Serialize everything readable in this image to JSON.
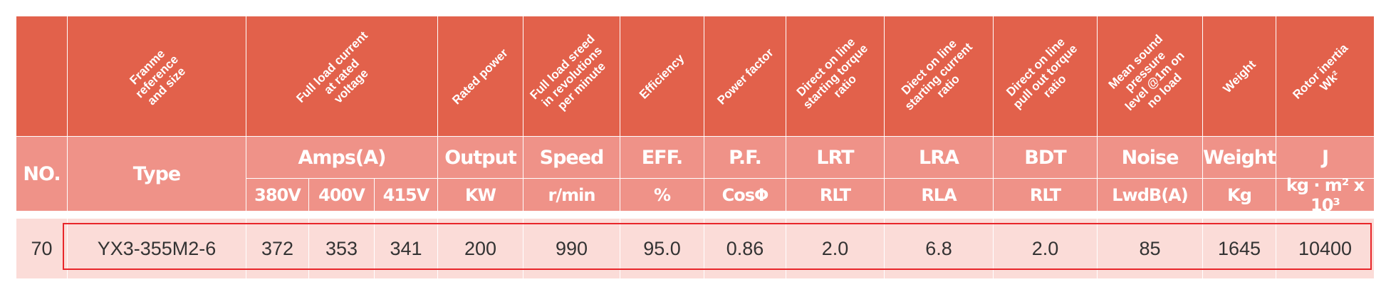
{
  "table": {
    "top_headers": [
      [
        "Franme",
        "reference",
        "and size"
      ],
      [
        "Full load current",
        "at rated",
        "voltage"
      ],
      [
        "Rated power"
      ],
      [
        "Full load sreed",
        "in revolutions",
        "per minute"
      ],
      [
        "Efficiency"
      ],
      [
        "Power factor"
      ],
      [
        "Direct on line",
        "starting torque",
        "ratio"
      ],
      [
        "Diect on line",
        "starting current",
        "ratio"
      ],
      [
        "Direct on line",
        "pull out torque",
        "ratio"
      ],
      [
        "Mean sound",
        "pressure",
        "level @1m on",
        "no load"
      ],
      [
        "Weight"
      ],
      [
        "Rotor inertia",
        "Wk²"
      ]
    ],
    "labels": [
      "NO.",
      "Type",
      "Amps(A)",
      "Output",
      "Speed",
      "EFF.",
      "P.F.",
      "LRT",
      "LRA",
      "BDT",
      "Noise",
      "Weight",
      "J"
    ],
    "units": [
      "380V",
      "400V",
      "415V",
      "KW",
      "r/min",
      "%",
      "CosΦ",
      "RLT",
      "RLA",
      "RLT",
      "LwdB(A)",
      "Kg",
      "kg · m² x 10³"
    ],
    "rows": [
      [
        "70",
        "YX3-355M2-6",
        "372",
        "353",
        "341",
        "200",
        "990",
        "95.0",
        "0.86",
        "2.0",
        "6.8",
        "2.0",
        "85",
        "1645",
        "10400"
      ]
    ]
  }
}
